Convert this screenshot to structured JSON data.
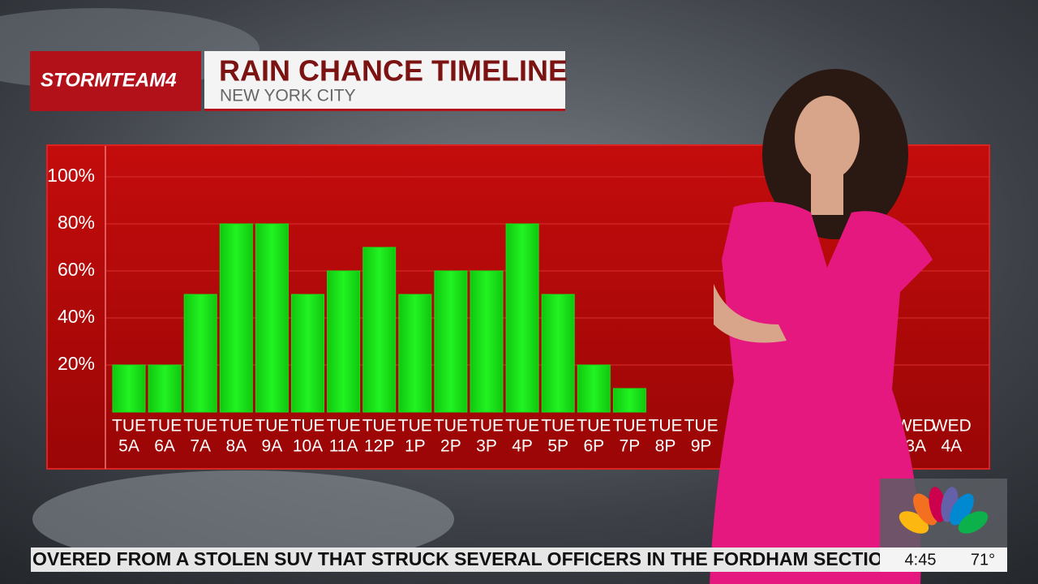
{
  "header": {
    "logo": "STORMTEAM4"
  },
  "chart_data": {
    "type": "bar",
    "title": "RAIN CHANCE TIMELINE",
    "subtitle": "NEW YORK CITY",
    "categories": [
      [
        "TUE",
        "5A"
      ],
      [
        "TUE",
        "6A"
      ],
      [
        "TUE",
        "7A"
      ],
      [
        "TUE",
        "8A"
      ],
      [
        "TUE",
        "9A"
      ],
      [
        "TUE",
        "10A"
      ],
      [
        "TUE",
        "11A"
      ],
      [
        "TUE",
        "12P"
      ],
      [
        "TUE",
        "1P"
      ],
      [
        "TUE",
        "2P"
      ],
      [
        "TUE",
        "3P"
      ],
      [
        "TUE",
        "4P"
      ],
      [
        "TUE",
        "5P"
      ],
      [
        "TUE",
        "6P"
      ],
      [
        "TUE",
        "7P"
      ],
      [
        "TUE",
        "8P"
      ],
      [
        "TUE",
        "9P"
      ],
      null,
      null,
      null,
      null,
      null,
      [
        "WED",
        "3A"
      ],
      [
        "WED",
        "4A"
      ]
    ],
    "values": [
      20,
      20,
      50,
      80,
      80,
      50,
      60,
      70,
      50,
      60,
      60,
      80,
      50,
      20,
      10,
      0,
      0,
      null,
      null,
      null,
      null,
      null,
      0,
      0
    ],
    "color": "#18e018",
    "ylim": [
      0,
      100
    ],
    "yticks": [
      {
        "value": 20,
        "label": "20%"
      },
      {
        "value": 40,
        "label": "40%"
      },
      {
        "value": 60,
        "label": "60%"
      },
      {
        "value": 80,
        "label": "80%"
      },
      {
        "value": 100,
        "label": "100%"
      }
    ],
    "grid": true
  },
  "ticker": {
    "text": "OVERED FROM A STOLEN SUV THAT STRUCK SEVERAL OFFICERS IN THE FORDHAM SECTION OF THE B",
    "time": "4:45",
    "temp": "71°"
  }
}
